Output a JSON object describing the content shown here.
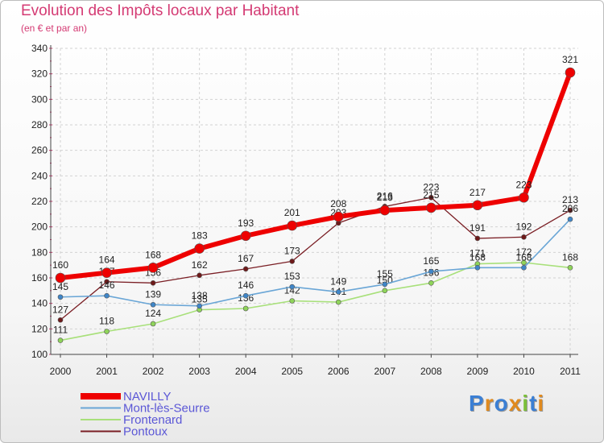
{
  "title": "Evolution des Impôts locaux par Habitant",
  "subtitle": "(en € et par an)",
  "logo": {
    "text": "Proxiti",
    "colors": [
      "#3b7fd4",
      "#e08a1e",
      "#3b7fd4",
      "#e08a1e",
      "#7bbf3a",
      "#3b7fd4",
      "#e08a1e"
    ]
  },
  "chart_data": {
    "type": "line",
    "categories": [
      "2000",
      "2001",
      "2002",
      "2003",
      "2004",
      "2005",
      "2006",
      "2007",
      "2008",
      "2009",
      "2010",
      "2011"
    ],
    "y_ticks": [
      100,
      120,
      140,
      160,
      180,
      200,
      220,
      240,
      260,
      280,
      300,
      320,
      340
    ],
    "ylim": [
      100,
      340
    ],
    "series": [
      {
        "name": "Pontoux",
        "color": "#7a1e24",
        "dot": "#6e1a1a",
        "width": 1.3,
        "r": 3,
        "values": [
          127,
          157,
          156,
          162,
          167,
          173,
          203,
          216,
          223,
          191,
          192,
          213
        ],
        "labels": [
          "127",
          "157",
          "156",
          "162",
          "167",
          "173",
          "203",
          "216",
          "223",
          "191",
          "192",
          "213"
        ]
      },
      {
        "name": "Frontenard",
        "color": "#a8e07a",
        "dot": "#8fd45a",
        "width": 1.6,
        "r": 3,
        "values": [
          111,
          118,
          124,
          135,
          136,
          142,
          141,
          150,
          156,
          171,
          172,
          168
        ],
        "labels": [
          "111",
          "118",
          "124",
          "135",
          "136",
          "142",
          "141",
          "150",
          "156",
          "171",
          "172",
          "168"
        ]
      },
      {
        "name": "Mont-lès-Seurre",
        "color": "#6aa6d6",
        "dot": "#3f86c8",
        "width": 1.6,
        "r": 3,
        "values": [
          145,
          146,
          139,
          138,
          146,
          153,
          149,
          155,
          165,
          168,
          168,
          206
        ],
        "labels": [
          "145",
          "146",
          "139",
          "138",
          "146",
          "153",
          "149",
          "155",
          "165",
          "168",
          "168",
          "206"
        ]
      },
      {
        "name": "NAVILLY",
        "color": "#ee0000",
        "dot": "#ee0000",
        "width": 6,
        "r": 6,
        "values": [
          160,
          164,
          168,
          183,
          193,
          201,
          208,
          213,
          215,
          217,
          223,
          321
        ],
        "labels": [
          "160",
          "164",
          "168",
          "183",
          "193",
          "201",
          "208",
          "213",
          "215",
          "217",
          "223",
          "321"
        ]
      }
    ],
    "legend": [
      "NAVILLY",
      "Mont-lès-Seurre",
      "Frontenard",
      "Pontoux"
    ]
  }
}
